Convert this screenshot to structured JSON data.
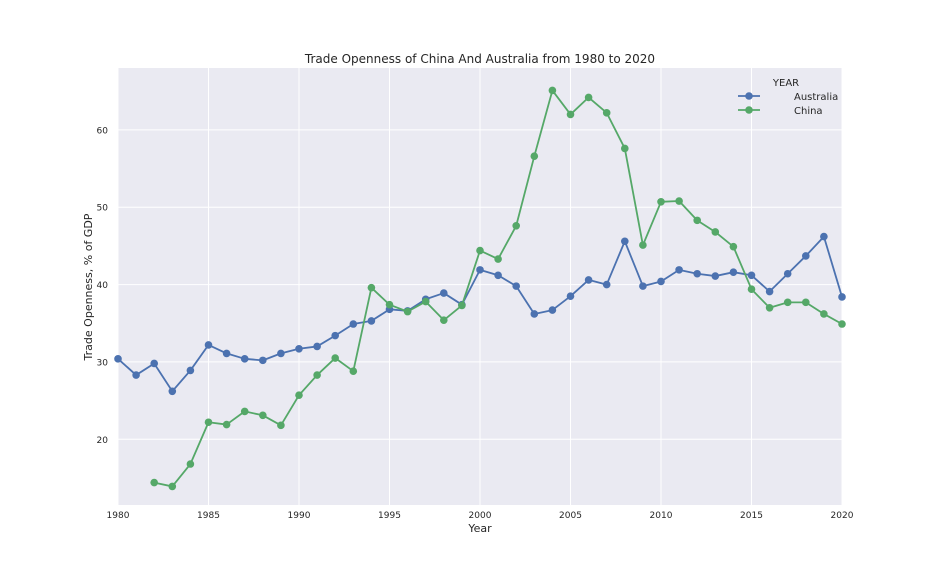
{
  "chart_data": {
    "type": "line",
    "title": "Trade Openness of China And Australia from 1980 to 2020",
    "xlabel": "Year",
    "ylabel": "Trade Openness, % of GDP",
    "xlim": [
      1980,
      2020
    ],
    "ylim": [
      11.5,
      68
    ],
    "xticks": [
      1980,
      1985,
      1990,
      1995,
      2000,
      2005,
      2010,
      2015,
      2020
    ],
    "yticks": [
      20,
      30,
      40,
      50,
      60
    ],
    "grid": true,
    "legend": {
      "title": "YEAR",
      "placement": "top-right"
    },
    "series": [
      {
        "name": "Australia",
        "color": "#4c72b0",
        "x": [
          1980,
          1981,
          1982,
          1983,
          1984,
          1985,
          1986,
          1987,
          1988,
          1989,
          1990,
          1991,
          1992,
          1993,
          1994,
          1995,
          1996,
          1997,
          1998,
          1999,
          2000,
          2001,
          2002,
          2003,
          2004,
          2005,
          2006,
          2007,
          2008,
          2009,
          2010,
          2011,
          2012,
          2013,
          2014,
          2015,
          2016,
          2017,
          2018,
          2019,
          2020
        ],
        "values": [
          30.4,
          28.3,
          29.8,
          26.2,
          28.9,
          32.2,
          31.1,
          30.4,
          30.2,
          31.1,
          31.7,
          32.0,
          33.4,
          34.9,
          35.3,
          36.8,
          36.6,
          38.1,
          38.9,
          37.4,
          41.9,
          41.2,
          39.8,
          36.2,
          36.7,
          38.5,
          40.6,
          40.0,
          45.6,
          39.8,
          40.4,
          41.9,
          41.4,
          41.1,
          41.6,
          41.2,
          39.1,
          41.4,
          43.7,
          46.2,
          38.4
        ]
      },
      {
        "name": "China",
        "color": "#55a868",
        "x": [
          1982,
          1983,
          1984,
          1985,
          1986,
          1987,
          1988,
          1989,
          1990,
          1991,
          1992,
          1993,
          1994,
          1995,
          1996,
          1997,
          1998,
          1999,
          2000,
          2001,
          2002,
          2003,
          2004,
          2005,
          2006,
          2007,
          2008,
          2009,
          2010,
          2011,
          2012,
          2013,
          2014,
          2015,
          2016,
          2017,
          2018,
          2019,
          2020
        ],
        "values": [
          14.4,
          13.9,
          16.8,
          22.2,
          21.9,
          23.6,
          23.1,
          21.8,
          25.7,
          28.3,
          30.5,
          28.8,
          39.6,
          37.4,
          36.5,
          37.8,
          35.4,
          37.3,
          44.4,
          43.3,
          47.6,
          56.6,
          65.1,
          62.0,
          64.2,
          62.2,
          57.6,
          45.1,
          50.7,
          50.8,
          48.3,
          46.8,
          44.9,
          39.4,
          37.0,
          37.7,
          37.7,
          36.2,
          34.9
        ]
      }
    ]
  }
}
